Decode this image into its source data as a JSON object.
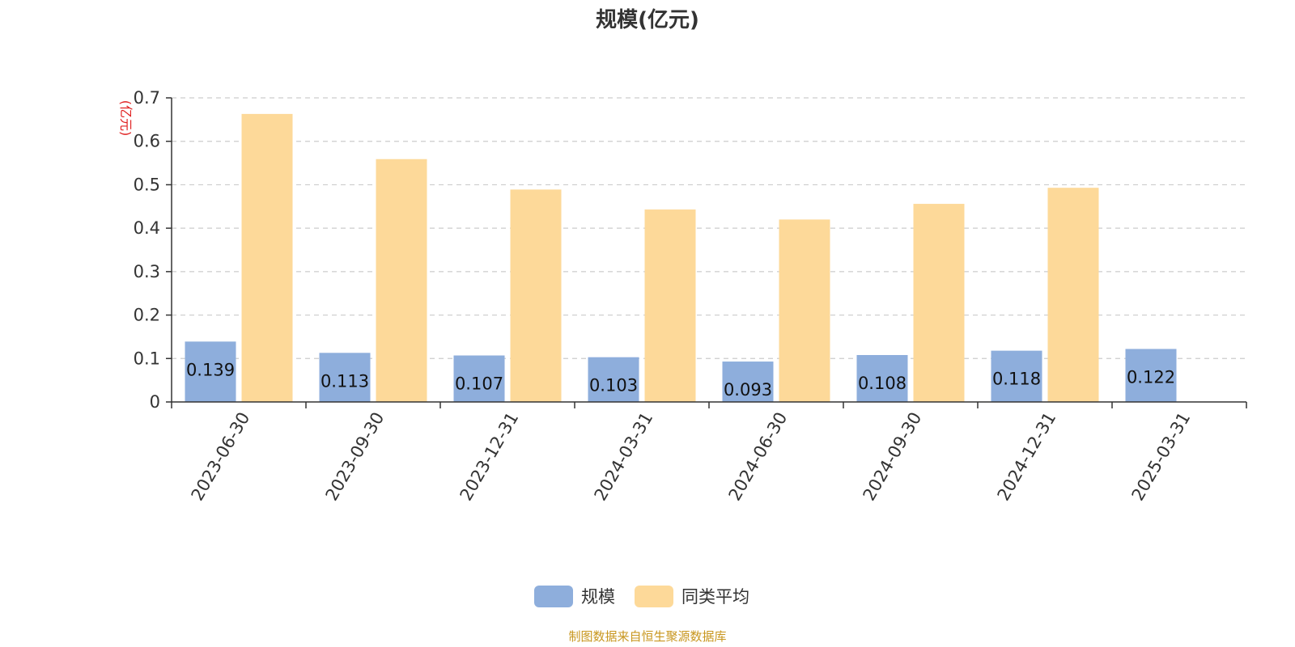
{
  "chart_data": {
    "type": "bar",
    "title": "规模(亿元)",
    "ylabel": "(亿元)",
    "ylim": [
      0,
      0.7
    ],
    "yticks": [
      "0",
      "0.1",
      "0.2",
      "0.3",
      "0.4",
      "0.5",
      "0.6",
      "0.7"
    ],
    "categories": [
      "2023-06-30",
      "2023-09-30",
      "2023-12-31",
      "2024-03-31",
      "2024-06-30",
      "2024-09-30",
      "2024-12-31",
      "2025-03-31"
    ],
    "series": [
      {
        "name": "规模",
        "color": "#8eaedc",
        "values": [
          0.139,
          0.113,
          0.107,
          0.103,
          0.093,
          0.108,
          0.118,
          0.122
        ],
        "labels": [
          "0.139",
          "0.113",
          "0.107",
          "0.103",
          "0.093",
          "0.108",
          "0.118",
          "0.122"
        ]
      },
      {
        "name": "同类平均",
        "color": "#fdd999",
        "values": [
          0.663,
          0.559,
          0.489,
          0.443,
          0.42,
          0.456,
          0.493,
          null
        ]
      }
    ],
    "grid": "horizontal-dashed",
    "legend_position": "bottom-center"
  },
  "footer": {
    "source": "制图数据来自恒生聚源数据库"
  }
}
